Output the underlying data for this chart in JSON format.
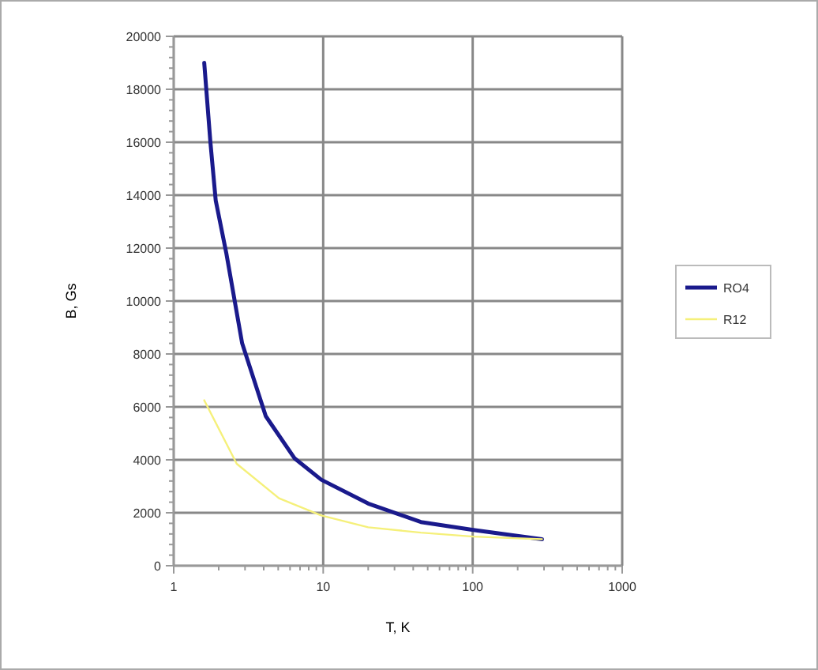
{
  "chart_data": {
    "type": "line",
    "xlabel": "T, K",
    "ylabel": "B, Gs",
    "log": "x",
    "xlim": [
      1,
      1000
    ],
    "xticks": [
      1,
      10,
      100,
      1000
    ],
    "ylim": [
      0,
      20000
    ],
    "yticks": [
      0,
      2000,
      4000,
      6000,
      8000,
      10000,
      12000,
      14000,
      16000,
      18000,
      20000
    ],
    "grid": true,
    "legend": "right",
    "marker": "none",
    "line_style": "solid",
    "series": [
      {
        "name": "RO4",
        "color": "#1a1a8c",
        "x": [
          1.6,
          1.76,
          1.91,
          2.25,
          2.87,
          4.13,
          6.45,
          9.7,
          20,
          45,
          101,
          291
        ],
        "values": [
          19000,
          16000,
          13800,
          11800,
          8400,
          5650,
          4050,
          3250,
          2350,
          1650,
          1350,
          1000
        ]
      },
      {
        "name": "R12",
        "color": "#f5f07a",
        "x": [
          1.6,
          2.64,
          5.06,
          9.7,
          20,
          45,
          101,
          291
        ],
        "values": [
          6250,
          3850,
          2550,
          1900,
          1450,
          1250,
          1100,
          1000
        ]
      }
    ]
  }
}
